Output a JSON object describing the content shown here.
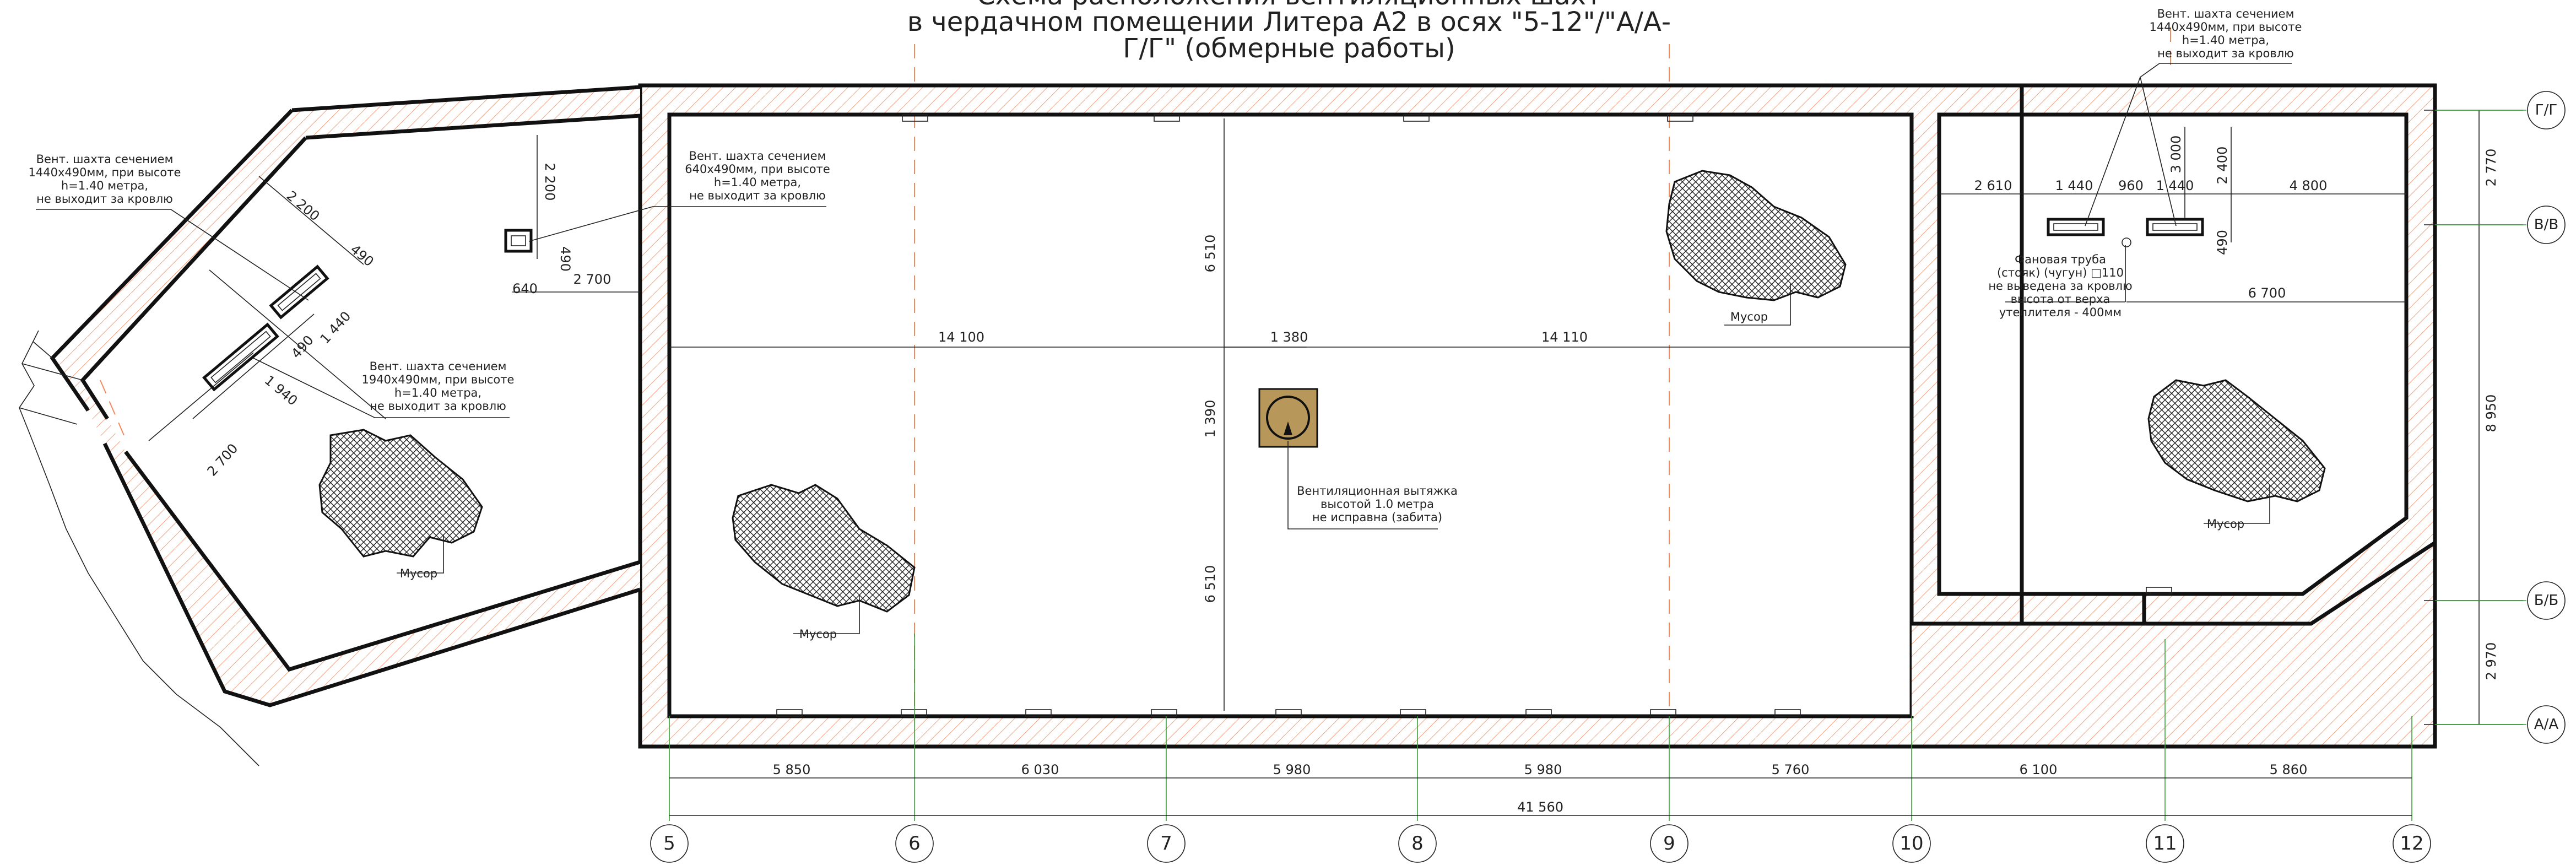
{
  "title": {
    "line1": "Схема расположения вентиляционных шахт",
    "line2": "в чердачном помещении Литера А2 в осях \"5-12\"/\"А/А-",
    "line3": "Г/Г\" (обмерные работы)"
  },
  "notes": {
    "left_shaft_1": [
      "Вент. шахта сечением",
      "1440х490мм, при высоте",
      "h=1.40 метра,",
      "не выходит за кровлю"
    ],
    "left_shaft_2": [
      "Вент. шахта сечением",
      "1940х490мм, при высоте",
      "h=1.40 метра,",
      "не выходит за кровлю"
    ],
    "mid_shaft": [
      "Вент. шахта сечением",
      "640х490мм, при высоте",
      "h=1.40 метра,",
      "не выходит за кровлю"
    ],
    "right_shaft": [
      "Вент. шахта сечением",
      "1440х490мм, при высоте",
      "h=1.40 метра,",
      "не выходит за кровлю"
    ],
    "fan_pipe": [
      "Фановая труба",
      "(стояк) (чугун) □110",
      "не выведена за кровлю",
      "высота от верха",
      "утеплителя - 400мм"
    ],
    "vent_hood": [
      "Вентиляционная вытяжка",
      "высотой 1.0 метра",
      "не исправна (забита)"
    ],
    "debris": "Мусор"
  },
  "dims": {
    "d2200_top": "2 200",
    "d490_a": "490",
    "d640": "640",
    "d2700_a": "2 700",
    "d2200_diag": "2 200",
    "d490_diag": "490",
    "d1440_diag": "1 440",
    "d490_diag2": "490",
    "d1940_diag": "1 940",
    "d2700_diag": "2 700",
    "d14100": "14 100",
    "d14110": "14 110",
    "d1380": "1 380",
    "d1390": "1 390",
    "d6510_top": "6 510",
    "d6510_bot": "6 510",
    "d2610": "2 610",
    "d1440_r1": "1 440",
    "d960": "960",
    "d1440_r2": "1 440",
    "d4800": "4 800",
    "d3000": "3 000",
    "d2400": "2 400",
    "d490_r": "490",
    "d6700": "6 700",
    "d2770": "2 770",
    "d8950": "8 950",
    "d2970": "2 970",
    "bottom": [
      "5 850",
      "6 030",
      "5 980",
      "5 980",
      "5 760",
      "6 100",
      "5 860"
    ],
    "total": "41 560"
  },
  "axes_columns": [
    "5",
    "6",
    "7",
    "8",
    "9",
    "10",
    "11",
    "12"
  ],
  "axes_rows": [
    "Г/Г",
    "В/В",
    "Б/Б",
    "А/А"
  ],
  "colors": {
    "hatch": "#f08a5d",
    "wall": "#111111",
    "grid": "#35a435",
    "vent_fill": "#b8985a"
  }
}
